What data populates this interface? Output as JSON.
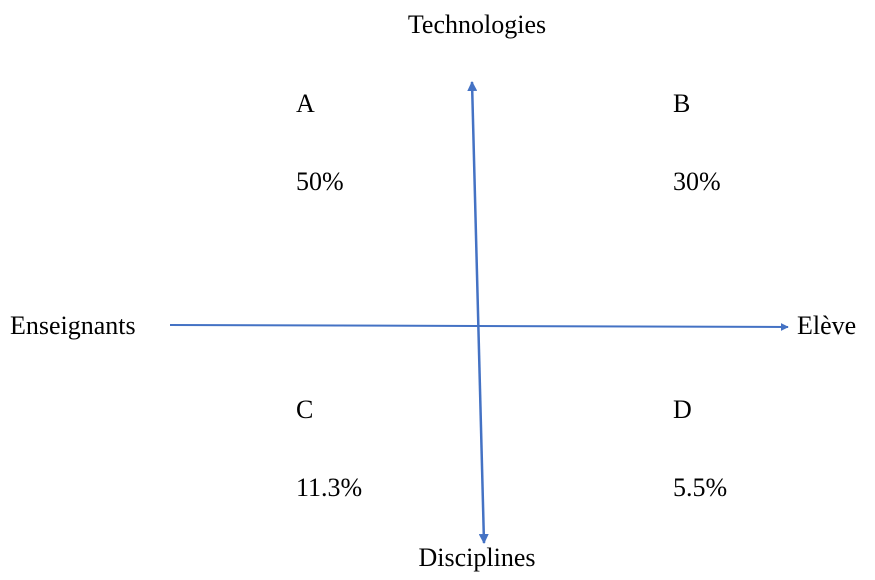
{
  "axes": {
    "top": "Technologies",
    "bottom": "Disciplines",
    "left": "Enseignants",
    "right": "Elève"
  },
  "quadrants": [
    {
      "label": "A",
      "value": "50%"
    },
    {
      "label": "B",
      "value": "30%"
    },
    {
      "label": "C",
      "value": "11.3%"
    },
    {
      "label": "D",
      "value": "5.5%"
    }
  ]
}
